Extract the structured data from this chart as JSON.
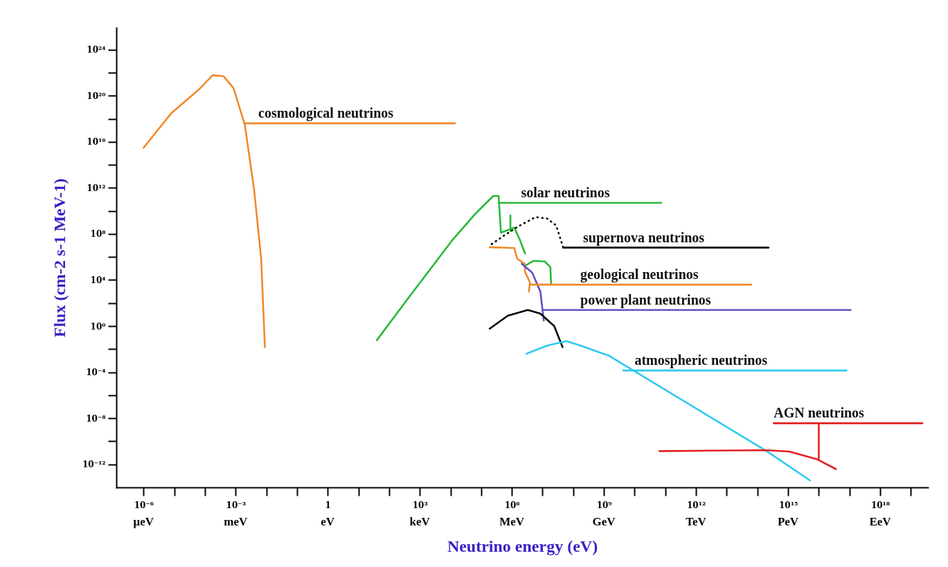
{
  "chart_data": {
    "type": "line",
    "xlabel": "Neutrino energy (eV)",
    "ylabel": "Flux (cm-2 s-1 MeV-1)",
    "log": "xy",
    "grid": false,
    "legend": false,
    "marker": "none",
    "xlim": [
      1.3e-07,
      3.6e+19
    ],
    "ylim": [
      1e-14,
      8e+25
    ],
    "xticks": [
      {
        "value": 1e-06,
        "label": "10⁻⁶"
      },
      {
        "value": 1e-05,
        "label": null
      },
      {
        "value": 0.0001,
        "label": null
      },
      {
        "value": 0.001,
        "label": "10⁻³"
      },
      {
        "value": 0.01,
        "label": null
      },
      {
        "value": 0.1,
        "label": null
      },
      {
        "value": 1,
        "label": "1"
      },
      {
        "value": 10,
        "label": null
      },
      {
        "value": 100,
        "label": null
      },
      {
        "value": 1000.0,
        "label": "10³"
      },
      {
        "value": 10000.0,
        "label": null
      },
      {
        "value": 100000.0,
        "label": null
      },
      {
        "value": 1000000.0,
        "label": "10⁶"
      },
      {
        "value": 10000000.0,
        "label": null
      },
      {
        "value": 100000000.0,
        "label": null
      },
      {
        "value": 1000000000.0,
        "label": "10⁹"
      },
      {
        "value": 10000000000.0,
        "label": null
      },
      {
        "value": 100000000000.0,
        "label": null
      },
      {
        "value": 1000000000000.0,
        "label": "10¹²"
      },
      {
        "value": 10000000000000.0,
        "label": null
      },
      {
        "value": 100000000000000.0,
        "label": null
      },
      {
        "value": 1000000000000000.0,
        "label": "10¹⁵"
      },
      {
        "value": 1e+16,
        "label": null
      },
      {
        "value": 1e+17,
        "label": null
      },
      {
        "value": 1e+18,
        "label": "10¹⁸"
      },
      {
        "value": 1e+19,
        "label": null
      }
    ],
    "yticks": [
      {
        "value": 1e-12,
        "label": "10⁻¹²"
      },
      {
        "value": 1e-10,
        "label": null
      },
      {
        "value": 1e-08,
        "label": "10⁻⁸"
      },
      {
        "value": 1e-06,
        "label": null
      },
      {
        "value": 0.0001,
        "label": "10⁻⁴"
      },
      {
        "value": 0.01,
        "label": null
      },
      {
        "value": 1,
        "label": "10⁰"
      },
      {
        "value": 100,
        "label": null
      },
      {
        "value": 10000.0,
        "label": "10⁴"
      },
      {
        "value": 1000000.0,
        "label": null
      },
      {
        "value": 100000000.0,
        "label": "10⁸"
      },
      {
        "value": 10000000000.0,
        "label": null
      },
      {
        "value": 1000000000000.0,
        "label": "10¹²"
      },
      {
        "value": 100000000000000.0,
        "label": null
      },
      {
        "value": 1e+16,
        "label": "10¹⁶"
      },
      {
        "value": 1e+18,
        "label": null
      },
      {
        "value": 1e+20,
        "label": "10²⁰"
      },
      {
        "value": 1e+22,
        "label": null
      },
      {
        "value": 1e+24,
        "label": "10²⁴"
      }
    ],
    "series": [
      {
        "color": "#f0892a",
        "x": [
          1e-06,
          8e-06,
          6e-05,
          0.00018,
          0.0004,
          0.00085,
          0.002,
          0.004,
          0.0068,
          0.009
        ],
        "values": [
          3000000000000000.0,
          3e+18,
          3e+20,
          6e+21,
          5e+21,
          4.6e+20,
          3e+17,
          700000000000.0,
          700000.0,
          0.015
        ]
      },
      {
        "color": "#28b83a",
        "x": [
          40,
          370,
          11000.0,
          70000.0,
          250000.0,
          370000.0,
          440000.0,
          1200000.0,
          1800000.0,
          2700000.0
        ],
        "values": [
          0.06,
          170,
          25000000.0,
          7000000000.0,
          200000000000.0,
          200000000000.0,
          130000000.0,
          350000000.0,
          34000000.0,
          2000000.0
        ]
      },
      {
        "color": "#28b83a",
        "x": [
          900000.0,
          900000.0
        ],
        "values": [
          4000000000.0,
          180000000.0
        ]
      },
      {
        "color": "#28b83a",
        "x": [
          2700000.0,
          5000000.0,
          12000000.0,
          18000000.0,
          19000000.0
        ],
        "values": [
          170000.0,
          460000.0,
          400000.0,
          130000.0,
          5000.0
        ]
      },
      {
        "color": "#000000",
        "line_style": "dotted",
        "x": [
          220000.0,
          630000.0,
          1500000.0,
          5900000.0,
          14000000.0,
          28000000.0,
          47000000.0
        ],
        "values": [
          13000000.0,
          90000000.0,
          400000000.0,
          2900000000.0,
          2200000000.0,
          540000000.0,
          6500000.0
        ]
      },
      {
        "color": "#f0892a",
        "x": [
          190000.0,
          1200000.0,
          1500000.0,
          2600000.0,
          2700000.0,
          3900000.0,
          3600000.0
        ],
        "values": [
          7000000.0,
          6000000.0,
          700000.0,
          260000.0,
          50000.0,
          6000.0,
          1000.0
        ]
      },
      {
        "color": "#6a4cc4",
        "x": [
          2100000.0,
          4600000.0,
          8500000.0,
          11000000.0
        ],
        "values": [
          260000.0,
          44000.0,
          1000.0,
          3
        ]
      },
      {
        "color": "#000000",
        "x": [
          190000.0,
          740000.0,
          3300000.0,
          8500000.0,
          24000000.0,
          45000000.0
        ],
        "values": [
          0.6,
          8,
          25,
          12,
          1,
          0.015
        ]
      },
      {
        "color": "#2ec9ee",
        "x": [
          3000000.0,
          14000000.0,
          60000000.0,
          150000000.0,
          1500000000.0,
          200000000000000.0,
          5200000000000000.0
        ],
        "values": [
          0.004,
          0.02,
          0.05,
          0.023,
          0.0026,
          1.4e-11,
          4e-14
        ]
      },
      {
        "color": "#e32022",
        "x": [
          65000000000.0,
          200000000000000.0,
          1100000000000000.0,
          9000000000000000.0,
          3.6e+16
        ],
        "values": [
          1.4e-11,
          1.7e-11,
          1.3e-11,
          2.7e-12,
          3.9e-13
        ]
      },
      {
        "color": "#f0892a",
        "x": [
          0.0019,
          14000.0
        ],
        "values": [
          4e+17,
          4e+17
        ]
      },
      {
        "color": "#28b83a",
        "x": [
          370000.0,
          74000000000.0
        ],
        "values": [
          50000000000.0,
          50000000000.0
        ]
      },
      {
        "color": "#000000",
        "x": [
          47000000.0,
          230000000000000.0
        ],
        "values": [
          6500000.0,
          6500000.0
        ]
      },
      {
        "color": "#f0892a",
        "x": [
          3900000.0,
          63000000000000.0
        ],
        "values": [
          4000.0,
          4000.0
        ]
      },
      {
        "color": "#6a4cc4",
        "x": [
          11000000.0,
          1.1e+17
        ],
        "values": [
          25,
          25
        ]
      },
      {
        "color": "#2ec9ee",
        "x": [
          4300000000.0,
          8e+16
        ],
        "values": [
          0.00014,
          0.00014
        ]
      },
      {
        "color": "#e32022",
        "x": [
          1e+16,
          1e+16,
          340000000000000.0,
          2.4e+19
        ],
        "values": [
          2.7e-12,
          3.7e-09,
          3.7e-09,
          3.7e-09
        ]
      }
    ],
    "annotations": [
      {
        "text": "cosmological neutrinos",
        "x": 0.0055,
        "y": 4e+17
      },
      {
        "text": "solar neutrinos",
        "x": 2000000.0,
        "y": 50000000000.0
      },
      {
        "text": "supernova neutrinos",
        "x": 210000000.0,
        "y": 6500000.0
      },
      {
        "text": "geological neutrinos",
        "x": 170000000.0,
        "y": 4000.0
      },
      {
        "text": "power plant neutrinos",
        "x": 170000000.0,
        "y": 25
      },
      {
        "text": "atmospheric neutrinos",
        "x": 10000000000.0,
        "y": 0.00014
      },
      {
        "text": "AGN neutrinos",
        "x": 340000000000000.0,
        "y": 3.7e-09
      },
      "μeV",
      "meV",
      "eV",
      "keV",
      "MeV",
      "GeV",
      "TeV",
      "PeV",
      "EeV"
    ]
  }
}
